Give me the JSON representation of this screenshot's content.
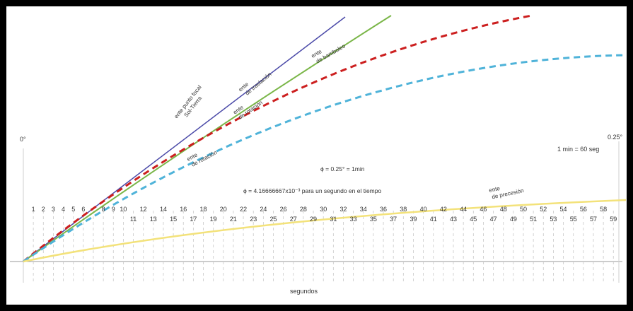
{
  "labels": {
    "angle_left": "0°",
    "angle_right": "0.25°",
    "conversion": "1 min = 60 seg",
    "phi_min": "ϕ = 0.25° = 1min",
    "phi_sec": "ϕ = 4.16666667x10⁻³ para un segundo en el tiempo",
    "axis_x": "segundos"
  },
  "curves": [
    {
      "id": "foco",
      "label_1": "ente punto focal",
      "label_2": "Sol-Tierra",
      "color": "#4b4aa8",
      "dashed": false
    },
    {
      "id": "traslacion",
      "label_1": "ente",
      "label_2": "de traslación",
      "color": "#7ab648",
      "dashed": false
    },
    {
      "id": "bamboleo",
      "label_1": "ente",
      "label_2": "de bamboleo",
      "color": "#7ab648",
      "dashed": false
    },
    {
      "id": "rotacion1",
      "label_1": "ente",
      "label_2": "de rotación",
      "color": "#cc1f1f",
      "dashed": true
    },
    {
      "id": "rotacion2",
      "label_1": "ente",
      "label_2": "de rotación",
      "color": "#4fb3d9",
      "dashed": true
    },
    {
      "id": "precesion",
      "label_1": "ente",
      "label_2": "de precesión",
      "color": "#f3e27a",
      "dashed": false
    }
  ],
  "ticks": {
    "top_row": [
      "1",
      "2",
      "3",
      "4",
      "5",
      "6",
      "8",
      "9",
      "10",
      "12",
      "14",
      "16",
      "18",
      "20",
      "22",
      "24",
      "26",
      "28",
      "30",
      "32",
      "34",
      "36",
      "38",
      "40",
      "42",
      "44",
      "46",
      "48",
      "50",
      "52",
      "54",
      "56",
      "58"
    ],
    "bottom_row": [
      "11",
      "13",
      "15",
      "17",
      "19",
      "21",
      "23",
      "25",
      "27",
      "29",
      "31",
      "33",
      "35",
      "37",
      "39",
      "41",
      "43",
      "45",
      "47",
      "49",
      "51",
      "53",
      "55",
      "57",
      "59"
    ]
  }
}
